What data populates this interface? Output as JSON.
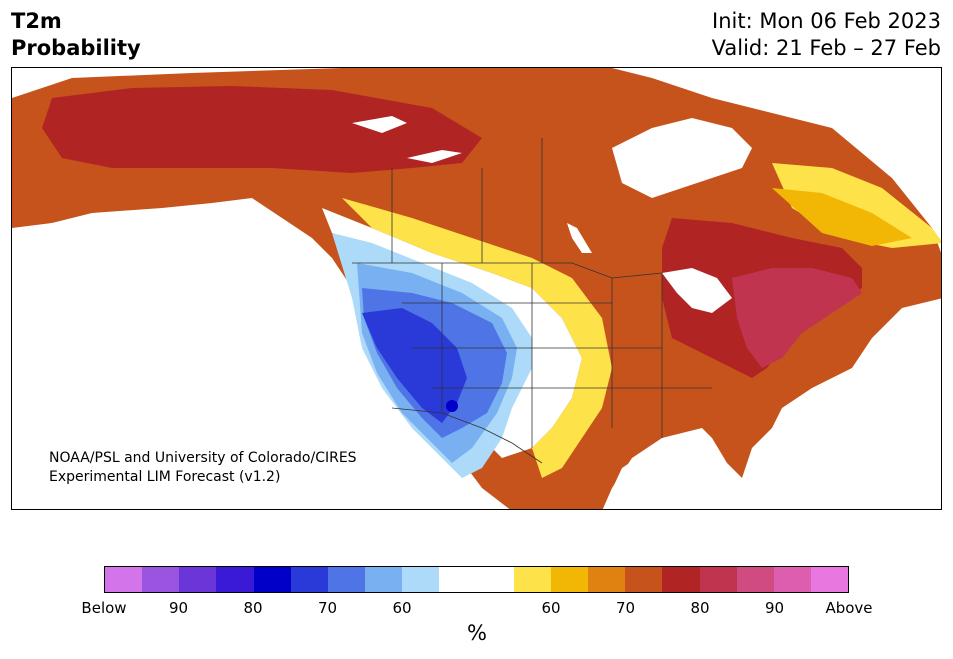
{
  "title": {
    "left_line1": "T2m",
    "left_line2": "Probability",
    "init": "Init: Mon 06 Feb 2023",
    "valid": "Valid: 21 Feb – 27 Feb"
  },
  "credit": {
    "line1": "NOAA/PSL and University of Colorado/CIRES",
    "line2": "Experimental LIM Forecast (v1.2)"
  },
  "colorbar": {
    "colors": [
      "#d474ea",
      "#9b54e0",
      "#6a36d8",
      "#3a1ad6",
      "#0000c8",
      "#2a3ad8",
      "#4e74e6",
      "#78b0f2",
      "#acdaf8",
      "#ffffff",
      "#ffffff",
      "#fde24a",
      "#f2b705",
      "#df8211",
      "#c6531b",
      "#b02424",
      "#c13450",
      "#d04b80",
      "#dd5dae",
      "#e878e0"
    ],
    "ticks": [
      "Below",
      "90",
      "80",
      "70",
      "60",
      "60",
      "70",
      "80",
      "90",
      "Above"
    ],
    "unit": "%"
  },
  "map_colors": {
    "ocean": "#ffffff",
    "near_normal": "#ffffff",
    "lakes": "#ffffff",
    "above_60": "#fde24a",
    "above_65": "#f2b705",
    "above_70": "#df8211",
    "above_75": "#c6531b",
    "above_80": "#b02424",
    "above_85": "#c13450",
    "above_90": "#d04b80",
    "below_60": "#acdaf8",
    "below_65": "#78b0f2",
    "below_70": "#4e74e6",
    "below_75": "#2a3ad8",
    "below_80": "#0000c8",
    "border": "#333333"
  }
}
